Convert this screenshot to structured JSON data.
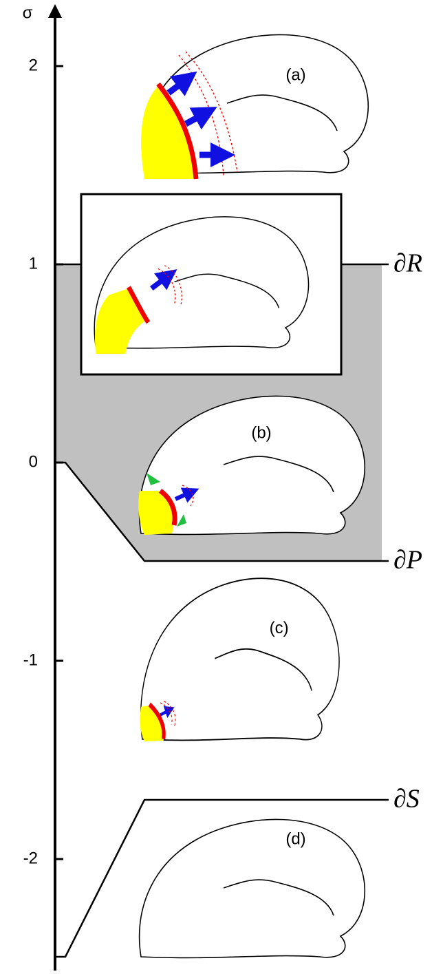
{
  "axis": {
    "label": "σ",
    "ticks": [
      2,
      1,
      0,
      -1,
      -2
    ]
  },
  "panels": [
    "(a)",
    "(b)",
    "(c)",
    "(d)"
  ],
  "boundaries": [
    "∂R",
    "∂P",
    "∂S"
  ]
}
